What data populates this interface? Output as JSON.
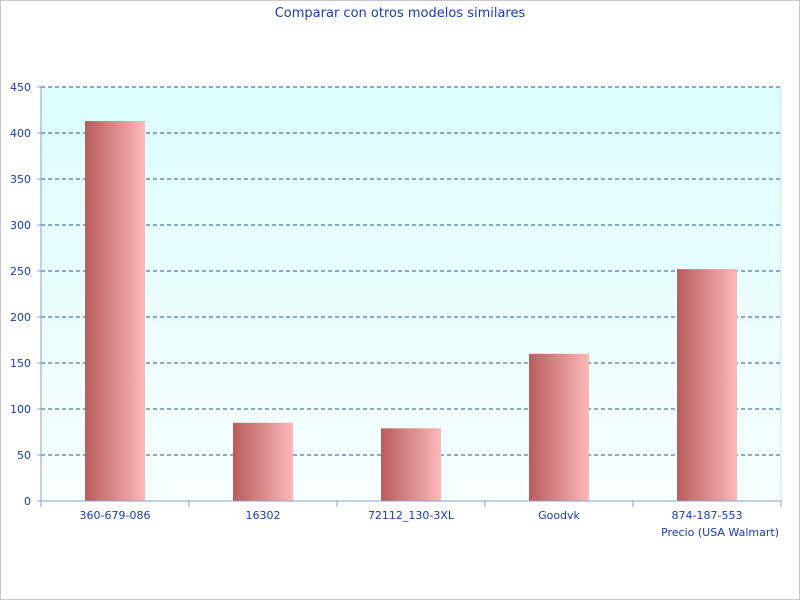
{
  "chart_data": {
    "type": "bar",
    "title": "Comparar con otros modelos similares",
    "xlabel": "Precio (USA Walmart)",
    "ylabel": "",
    "categories": [
      "360-679-086",
      "16302",
      "72112_130-3XL",
      "Goodvk",
      "874-187-553"
    ],
    "values": [
      413,
      85,
      79,
      160,
      252
    ],
    "ylim": [
      0,
      450
    ],
    "yticks": [
      0,
      50,
      100,
      150,
      200,
      250,
      300,
      350,
      400,
      450
    ],
    "grid": true,
    "legend": "none"
  },
  "colors": {
    "text": "#1a3cb0",
    "grid": "#2b4fa8",
    "plot_bg_top": "#ddfdfd",
    "plot_bg_bottom": "#f6ffff",
    "bar_dark": "#b85c5c",
    "bar_light": "#fdb8b8"
  }
}
